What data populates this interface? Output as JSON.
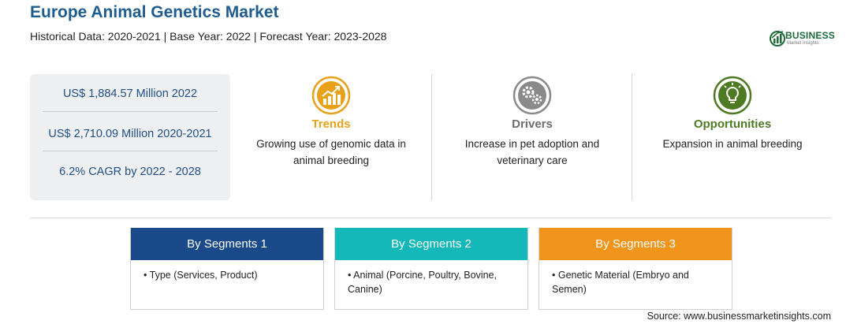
{
  "header": {
    "title": "Europe Animal Genetics Market",
    "subtitle": "Historical Data: 2020-2021 | Base Year: 2022 | Forecast Year: 2023-2028"
  },
  "logo": {
    "name": "BUSINESS",
    "tagline": "Market Insights",
    "color": "#1f6b3a"
  },
  "stats": [
    "US$ 1,884.57 Million 2022",
    "US$ 2,710.09 Million 2020-2021",
    "6.2% CAGR by 2022 - 2028"
  ],
  "features": [
    {
      "title": "Trends",
      "description": "Growing use of genomic data in animal breeding",
      "icon": "trending-up-chart-icon",
      "color": "#e8a21a"
    },
    {
      "title": "Drivers",
      "description": "Increase in pet adoption and veterinary care",
      "icon": "gears-icon",
      "color": "#7a7a7a"
    },
    {
      "title": "Opportunities",
      "description": "Expansion in animal breeding",
      "icon": "lightbulb-icon",
      "color": "#4f7a24"
    }
  ],
  "segments": [
    {
      "title": "By Segments 1",
      "item": "• Type (Services, Product)",
      "color": "#1b4a8a"
    },
    {
      "title": "By Segments 2",
      "item": "• Animal (Porcine, Poultry, Bovine, Canine)",
      "color": "#14b8b8"
    },
    {
      "title": "By Segments 3",
      "item": "• Genetic Material (Embryo and Semen)",
      "color": "#f0941c"
    }
  ],
  "source": "Source: www.businessmarketinsights.com"
}
